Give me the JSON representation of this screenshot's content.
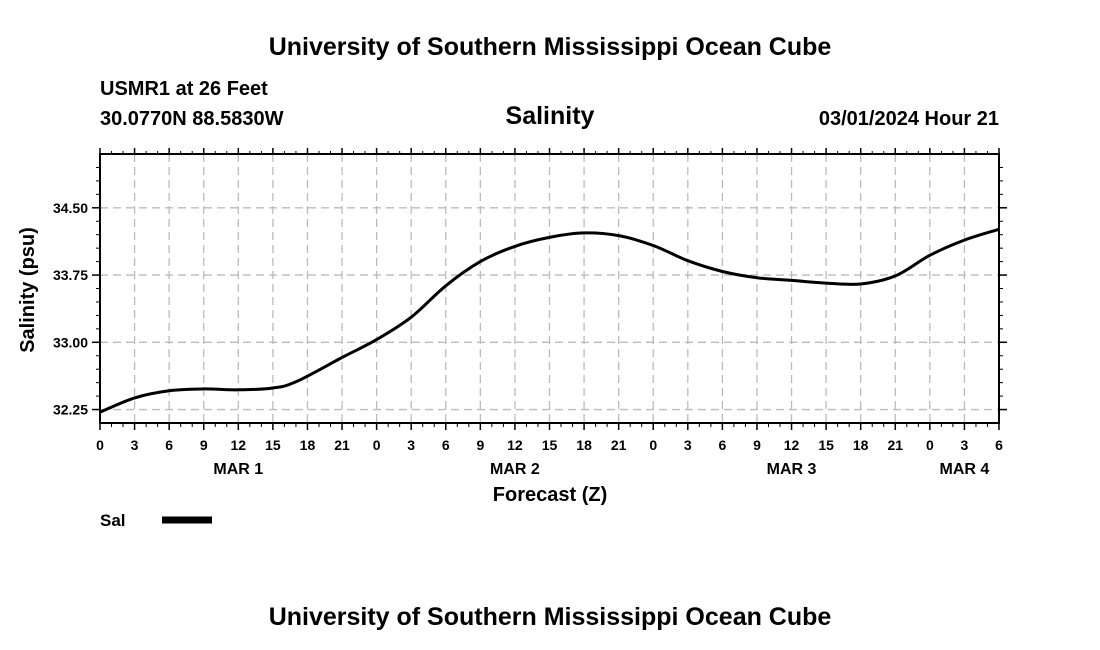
{
  "header": {
    "title": "University of Southern Mississippi Ocean Cube",
    "station": "USMR1 at 26 Feet",
    "location": "30.0770N  88.5830W",
    "chart_title": "Salinity",
    "timestamp": "03/01/2024 Hour 21"
  },
  "footer": {
    "title": "University of Southern Mississippi Ocean Cube"
  },
  "legend": {
    "label": "Sal",
    "color": "#000000"
  },
  "chart_data": {
    "type": "line",
    "title": "Salinity",
    "xlabel": "Forecast (Z)",
    "ylabel": "Salinity (psu)",
    "ylim": [
      32.1,
      35.1
    ],
    "xlim": [
      0,
      78
    ],
    "grid": true,
    "yticks": [
      "32.25",
      "33.00",
      "33.75",
      "34.50"
    ],
    "ytick_values": [
      32.25,
      33.0,
      33.75,
      34.5
    ],
    "xtick_labels": [
      "0",
      "3",
      "6",
      "9",
      "12",
      "15",
      "18",
      "21",
      "0",
      "3",
      "6",
      "9",
      "12",
      "15",
      "18",
      "21",
      "0",
      "3",
      "6",
      "9",
      "12",
      "15",
      "18",
      "21",
      "0",
      "3",
      "6"
    ],
    "day_labels": [
      {
        "label": "MAR 1",
        "hour": 12
      },
      {
        "label": "MAR 2",
        "hour": 36
      },
      {
        "label": "MAR 3",
        "hour": 60
      },
      {
        "label": "MAR 4",
        "hour": 75
      }
    ],
    "series": [
      {
        "name": "Sal",
        "x": [
          0,
          3,
          6,
          9,
          12,
          15,
          17,
          21,
          24,
          27,
          30,
          33,
          36,
          39,
          42,
          45,
          48,
          51,
          54,
          57,
          60,
          63,
          66,
          69,
          72,
          75,
          78
        ],
        "values": [
          32.22,
          32.38,
          32.46,
          32.48,
          32.47,
          32.49,
          32.56,
          32.83,
          33.03,
          33.28,
          33.63,
          33.9,
          34.07,
          34.17,
          34.22,
          34.19,
          34.08,
          33.91,
          33.79,
          33.72,
          33.69,
          33.66,
          33.65,
          33.74,
          33.97,
          34.14,
          34.26
        ]
      }
    ]
  }
}
